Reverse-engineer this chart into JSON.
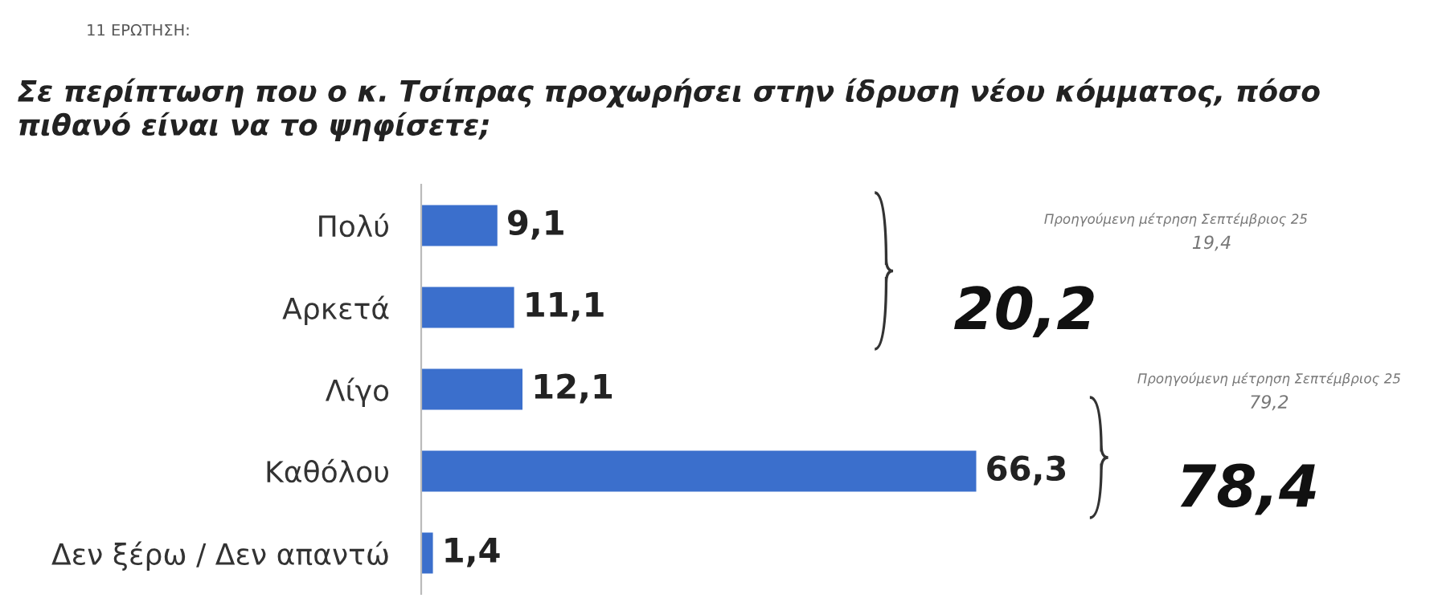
{
  "chart_data": {
    "type": "bar",
    "orientation": "horizontal",
    "title": "Σε περίπτωση που ο κ. Τσίπρας προχωρήσει στην ίδρυση νέου κόμματος, πόσο πιθανό είναι να το ψηφίσετε;",
    "subtitle": "11 ΕΡΩΤΗΣΗ:",
    "categories": [
      "Πολύ",
      "Αρκετά",
      "Λίγο",
      "Καθόλου",
      "Δεν ξέρω / Δεν απαντώ"
    ],
    "values": [
      9.1,
      11.1,
      12.1,
      66.3,
      1.4
    ],
    "value_labels": [
      "9,1",
      "11,1",
      "12,1",
      "66,3",
      "1,4"
    ],
    "color": "#3b6fcc",
    "annotations": [
      "Προηγούμενη μέτρηση Σεπτέμβριος 25",
      "19,4",
      "20,2",
      "Προηγούμενη μέτρηση Σεπτέμβριος 25",
      "79,2",
      "78,4"
    ]
  }
}
